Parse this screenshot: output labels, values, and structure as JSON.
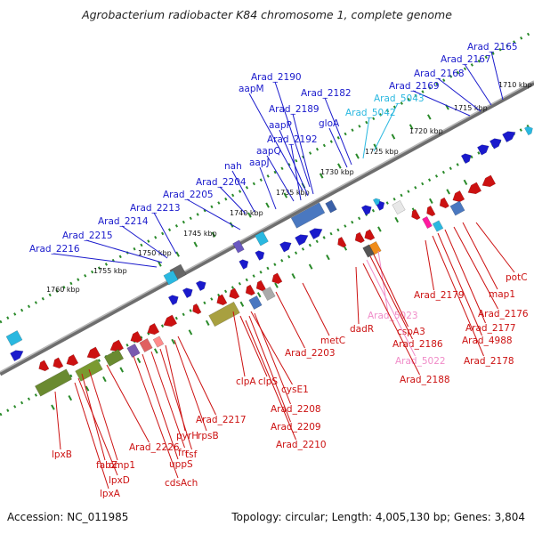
{
  "title": "Agrobacterium radiobacter K84 chromosome 1, complete genome",
  "footer": {
    "accession": "Accession: NC_011985",
    "topology": "Topology: circular; Length: 4,005,130 bp; Genes: 3,804"
  },
  "colors": {
    "forward": "#1a1acc",
    "reverse": "#cc1111",
    "rna_forward": "#2ab8e0",
    "rna_reverse": "#f08cc8",
    "backbone": "#888888",
    "ruler": "#2a8a2a"
  },
  "scale_labels": [
    "1710 kbp",
    "1715 kbp",
    "1720 kbp",
    "1725 kbp",
    "1730 kbp",
    "1735 kbp",
    "1740 kbp",
    "1745 kbp",
    "1750 kbp",
    "1755 kbp",
    "1760 kbp"
  ],
  "top_genes": [
    "Arad_2165",
    "Arad_2167",
    "Arad_2168",
    "Arad_2169",
    "Arad_5043",
    "Arad_5042",
    "Arad_2182",
    "gloA",
    "Arad_2190",
    "aapM",
    "Arad_2189",
    "aapP",
    "Arad_2192",
    "aapQ",
    "aapJ",
    "nah",
    "Arad_2204",
    "Arad_2205",
    "Arad_2213",
    "Arad_2214",
    "Arad_2215",
    "Arad_2216"
  ],
  "bottom_genes": [
    "potC",
    "map1",
    "Arad_2176",
    "Arad_2177",
    "Arad_4988",
    "Arad_2178",
    "Arad_2179",
    "Arad_5023",
    "cspA3",
    "Arad_2186",
    "Arad_5022",
    "Arad_2188",
    "dadR",
    "metC",
    "Arad_2203",
    "clpA",
    "clpS",
    "cysE1",
    "Arad_2208",
    "Arad_2209",
    "Arad_2210",
    "Arad_2217",
    "rpsB",
    "pyrH",
    "tsf",
    "frr",
    "uppS",
    "Arad_2226",
    "cdsAch",
    "omp1",
    "fabZ",
    "lpxD",
    "lpxA",
    "lpxB"
  ]
}
